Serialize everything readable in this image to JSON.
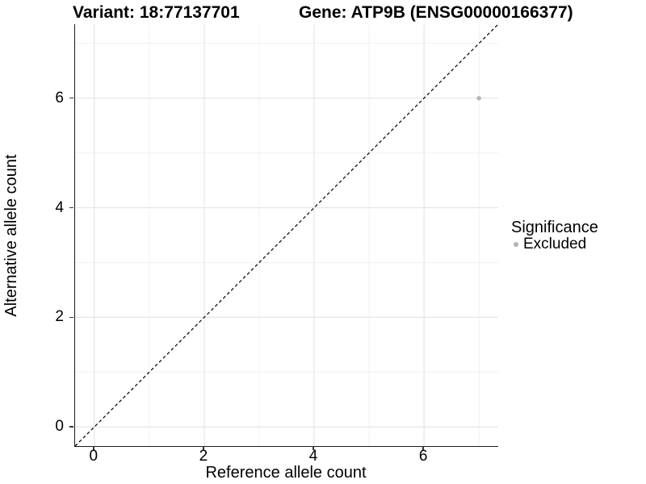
{
  "titles": {
    "variant": "Variant: 18:77137701",
    "gene": "Gene: ATP9B (ENSG00000166377)"
  },
  "axes": {
    "x_label": "Reference allele count",
    "y_label": "Alternative allele count"
  },
  "legend": {
    "title": "Significance",
    "items": [
      {
        "label": "Excluded",
        "color": "#b4b4b4"
      }
    ]
  },
  "colors": {
    "point_gray": "#b4b4b4",
    "grid_major": "#e5e5e5",
    "grid_minor": "#f1f1f1",
    "axis_line": "#1a1a1a",
    "reference_line": "#000000"
  },
  "chart_data": {
    "type": "scatter",
    "title": "Variant: 18:77137701 — Gene: ATP9B (ENSG00000166377)",
    "xlabel": "Reference allele count",
    "ylabel": "Alternative allele count",
    "xlim": [
      -0.35,
      7.35
    ],
    "ylim": [
      -0.35,
      7.35
    ],
    "x_major_ticks": [
      0,
      2,
      4,
      6
    ],
    "y_major_ticks": [
      0,
      2,
      4,
      6
    ],
    "x_minor_ticks": [
      1,
      3,
      5,
      7
    ],
    "y_minor_ticks": [
      1,
      3,
      5,
      7
    ],
    "grid": true,
    "legend_position": "right",
    "legend_title": "Significance",
    "series": [
      {
        "name": "Excluded",
        "color": "#b4b4b4",
        "point_radius": 2.7,
        "points": [
          {
            "x": 7,
            "y": 6
          }
        ]
      }
    ],
    "reference_line": {
      "kind": "identity y=x",
      "style": "dashed",
      "dash": [
        4,
        3
      ],
      "color": "#000000",
      "from": [
        -0.35,
        -0.35
      ],
      "to": [
        7.35,
        7.35
      ]
    }
  }
}
